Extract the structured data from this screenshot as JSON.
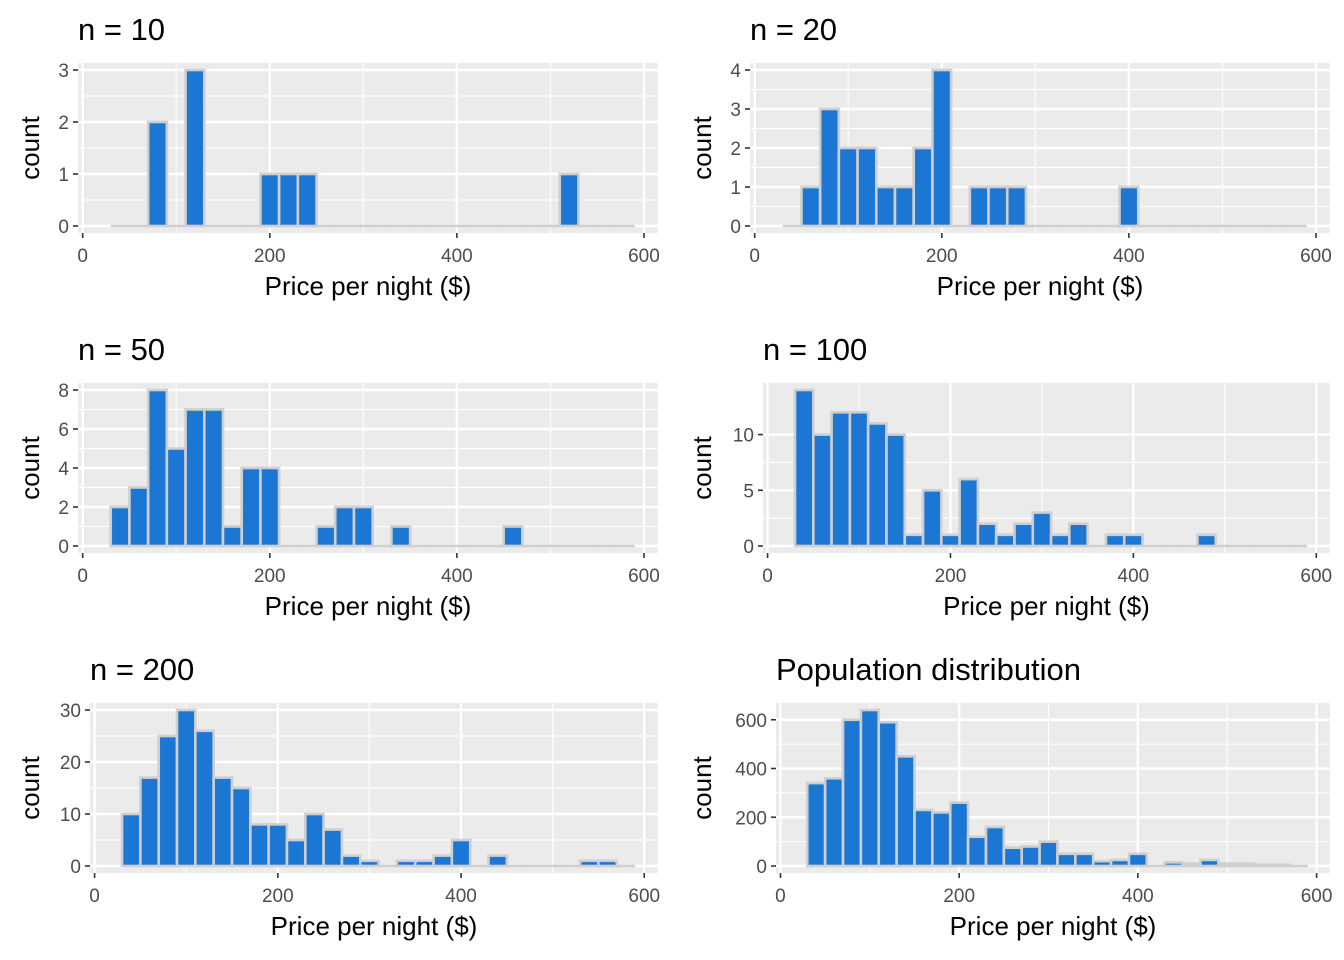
{
  "colors": {
    "bar_fill": "#1c77d4",
    "bar_outline": "#cfcfcf",
    "panel_background": "#ebebeb",
    "grid": "#ffffff"
  },
  "chart_data": [
    {
      "type": "bar",
      "title": "n = 10",
      "xlabel": "Price per night ($)",
      "ylabel": "count",
      "xlim": [
        -5,
        615
      ],
      "ylim": [
        0,
        3
      ],
      "xticks": [
        0,
        200,
        400,
        600
      ],
      "xtick_labels": [
        "0",
        "200",
        "400",
        "600"
      ],
      "yticks": [
        0,
        1,
        2,
        3
      ],
      "ytick_labels": [
        "0",
        "1",
        "2",
        "3"
      ],
      "bin_width": 20,
      "bin_start": 30,
      "bin_end": 590,
      "counts": [
        0,
        0,
        2,
        0,
        3,
        0,
        0,
        0,
        1,
        1,
        1,
        0,
        0,
        0,
        0,
        0,
        0,
        0,
        0,
        0,
        0,
        0,
        0,
        0,
        1,
        0,
        0,
        0
      ],
      "grid": true
    },
    {
      "type": "bar",
      "title": "n = 20",
      "xlabel": "Price per night ($)",
      "ylabel": "count",
      "xlim": [
        -5,
        615
      ],
      "ylim": [
        0,
        4
      ],
      "xticks": [
        0,
        200,
        400,
        600
      ],
      "xtick_labels": [
        "0",
        "200",
        "400",
        "600"
      ],
      "yticks": [
        0,
        1,
        2,
        3,
        4
      ],
      "ytick_labels": [
        "0",
        "1",
        "2",
        "3",
        "4"
      ],
      "bin_width": 20,
      "bin_start": 30,
      "bin_end": 590,
      "counts": [
        0,
        1,
        3,
        2,
        2,
        1,
        1,
        2,
        4,
        0,
        1,
        1,
        1,
        0,
        0,
        0,
        0,
        0,
        1,
        0,
        0,
        0,
        0,
        0,
        0,
        0,
        0,
        0
      ],
      "grid": true
    },
    {
      "type": "bar",
      "title": "n = 50",
      "xlabel": "Price per night ($)",
      "ylabel": "count",
      "xlim": [
        -5,
        615
      ],
      "ylim": [
        0,
        8
      ],
      "xticks": [
        0,
        200,
        400,
        600
      ],
      "xtick_labels": [
        "0",
        "200",
        "400",
        "600"
      ],
      "yticks": [
        0,
        2,
        4,
        6,
        8
      ],
      "ytick_labels": [
        "0",
        "2",
        "4",
        "6",
        "8"
      ],
      "bin_width": 20,
      "bin_start": 30,
      "bin_end": 590,
      "counts": [
        2,
        3,
        8,
        5,
        7,
        7,
        1,
        4,
        4,
        0,
        0,
        1,
        2,
        2,
        0,
        1,
        0,
        0,
        0,
        0,
        0,
        1,
        0,
        0,
        0,
        0,
        0,
        0
      ],
      "grid": true
    },
    {
      "type": "bar",
      "title": "n = 100",
      "xlabel": "Price per night ($)",
      "ylabel": "count",
      "xlim": [
        -5,
        615
      ],
      "ylim": [
        0,
        14
      ],
      "xticks": [
        0,
        200,
        400,
        600
      ],
      "xtick_labels": [
        "0",
        "200",
        "400",
        "600"
      ],
      "yticks": [
        0,
        5,
        10
      ],
      "ytick_labels": [
        "0",
        "5",
        "10"
      ],
      "bin_width": 20,
      "bin_start": 30,
      "bin_end": 590,
      "counts": [
        14,
        10,
        12,
        12,
        11,
        10,
        1,
        5,
        1,
        6,
        2,
        1,
        2,
        3,
        1,
        2,
        0,
        1,
        1,
        0,
        0,
        0,
        1,
        0,
        0,
        0,
        0,
        0
      ],
      "grid": true
    },
    {
      "type": "bar",
      "title": "n = 200",
      "xlabel": "Price per night ($)",
      "ylabel": "count",
      "xlim": [
        -5,
        615
      ],
      "ylim": [
        0,
        30
      ],
      "xticks": [
        0,
        200,
        400,
        600
      ],
      "xtick_labels": [
        "0",
        "200",
        "400",
        "600"
      ],
      "yticks": [
        0,
        10,
        20,
        30
      ],
      "ytick_labels": [
        "0",
        "10",
        "20",
        "30"
      ],
      "bin_width": 20,
      "bin_start": 30,
      "bin_end": 590,
      "counts": [
        10,
        17,
        25,
        30,
        26,
        17,
        15,
        8,
        8,
        5,
        10,
        7,
        2,
        1,
        0,
        1,
        1,
        2,
        5,
        0,
        2,
        0,
        0,
        0,
        0,
        1,
        1,
        0
      ],
      "grid": true
    },
    {
      "type": "bar",
      "title": "Population distribution",
      "xlabel": "Price per night ($)",
      "ylabel": "count",
      "xlim": [
        -5,
        615
      ],
      "ylim": [
        0,
        640
      ],
      "xticks": [
        0,
        200,
        400,
        600
      ],
      "xtick_labels": [
        "0",
        "200",
        "400",
        "600"
      ],
      "yticks": [
        0,
        200,
        400,
        600
      ],
      "ytick_labels": [
        "0",
        "200",
        "400",
        "600"
      ],
      "bin_width": 20,
      "bin_start": 30,
      "bin_end": 590,
      "counts": [
        340,
        360,
        600,
        640,
        590,
        450,
        230,
        220,
        260,
        120,
        160,
        75,
        80,
        100,
        50,
        50,
        20,
        25,
        50,
        0,
        15,
        10,
        25,
        10,
        10,
        5,
        5,
        0
      ],
      "grid": true
    }
  ]
}
